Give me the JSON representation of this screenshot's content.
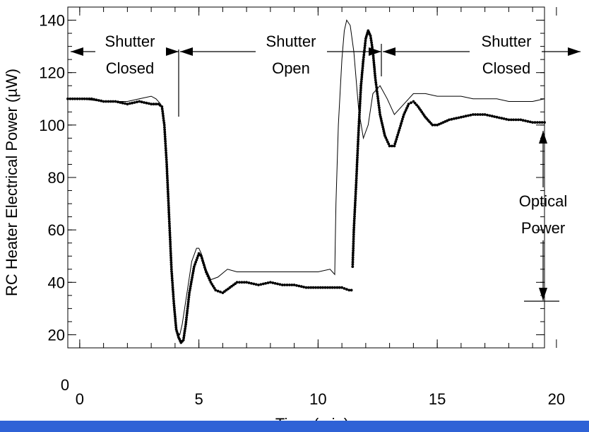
{
  "colors": {
    "background": "#ffffff",
    "ink": "#000000",
    "bottom_bar": "#2f62d6"
  },
  "chart_data": {
    "type": "line",
    "xlabel": "Time (min)",
    "ylabel": "RC Heater Electrical Power (µW)",
    "xlim": [
      -0.5,
      19.5
    ],
    "ylim": [
      15,
      145
    ],
    "x_ticks": [
      0,
      5,
      10,
      15,
      20
    ],
    "y_ticks": [
      20,
      40,
      60,
      80,
      100,
      120,
      140
    ],
    "extra_label": "0",
    "grid": false,
    "series": [
      {
        "style": "thin-solid",
        "x": [
          -0.5,
          0,
          0.5,
          1,
          1.5,
          2,
          2.5,
          3,
          3.2,
          3.4,
          3.5,
          3.6,
          3.7,
          3.8,
          3.9,
          4.0,
          4.1,
          4.2,
          4.3,
          4.5,
          4.7,
          4.9,
          5.0,
          5.1,
          5.3,
          5.5,
          5.8,
          6.2,
          6.6,
          7,
          7.5,
          8,
          8.5,
          9,
          9.5,
          10,
          10.5,
          10.7,
          10.72,
          10.75,
          10.85,
          11.0,
          11.1,
          11.2,
          11.35,
          11.5,
          11.7,
          11.9,
          12.1,
          12.3,
          12.6,
          12.9,
          13.2,
          13.6,
          14.0,
          14.5,
          15,
          15.5,
          16,
          16.5,
          17,
          17.5,
          18,
          18.5,
          19,
          19.5
        ],
        "y": [
          110,
          110,
          109.5,
          109,
          109,
          109,
          110,
          111,
          110,
          108,
          105,
          95,
          80,
          60,
          38,
          26,
          21,
          20,
          24,
          36,
          48,
          53,
          53,
          51,
          45,
          41,
          42,
          45,
          44,
          44,
          44,
          44,
          44,
          44,
          44,
          44,
          45,
          43,
          55,
          70,
          100,
          125,
          136,
          140,
          138,
          128,
          106,
          95,
          100,
          112,
          115,
          110,
          104,
          108,
          112,
          112,
          111,
          111,
          111,
          110,
          110,
          110,
          109,
          109,
          109,
          110
        ]
      },
      {
        "style": "thick-dotted",
        "x": [
          -0.5,
          0,
          0.5,
          1,
          1.5,
          2,
          2.5,
          3,
          3.3,
          3.45,
          3.55,
          3.65,
          3.75,
          3.85,
          3.95,
          4.05,
          4.15,
          4.25,
          4.35,
          4.45,
          4.6,
          4.8,
          5.0,
          5.1,
          5.3,
          5.5,
          5.7,
          6.0,
          6.3,
          6.6,
          7,
          7.5,
          8,
          8.5,
          9,
          9.5,
          10,
          10.5,
          11,
          11.3,
          11.4
        ],
        "y": [
          110,
          110,
          110,
          109,
          109,
          108,
          109,
          108,
          108,
          107,
          100,
          85,
          65,
          45,
          32,
          22,
          19,
          17,
          18,
          24,
          36,
          46,
          51,
          50,
          44,
          40,
          37,
          36,
          38,
          40,
          40,
          39,
          40,
          39,
          39,
          38,
          38,
          38,
          38,
          37,
          37
        ]
      },
      {
        "style": "thick-dotted",
        "x": [
          11.45,
          11.5,
          11.6,
          11.7,
          11.8,
          11.9,
          12.0,
          12.1,
          12.2,
          12.3,
          12.4,
          12.6,
          12.8,
          13.0,
          13.2,
          13.4,
          13.6,
          13.8,
          14.0,
          14.2,
          14.5,
          14.8,
          15,
          15.5,
          16,
          16.5,
          17,
          17.5,
          18,
          18.5,
          19,
          19.5
        ],
        "y": [
          46,
          60,
          78,
          98,
          115,
          125,
          133,
          136,
          134,
          128,
          118,
          104,
          96,
          92,
          92,
          98,
          104,
          108,
          109,
          107,
          103,
          100,
          100,
          102,
          103,
          104,
          104,
          103,
          102,
          102,
          101,
          101
        ]
      }
    ],
    "annotations": [
      {
        "line1": "Shutter",
        "line2": "Closed"
      },
      {
        "line1": "Shutter",
        "line2": "Open"
      },
      {
        "line1": "Shutter",
        "line2": "Closed"
      },
      {
        "line1": "Optical",
        "line2": "Power"
      }
    ]
  }
}
